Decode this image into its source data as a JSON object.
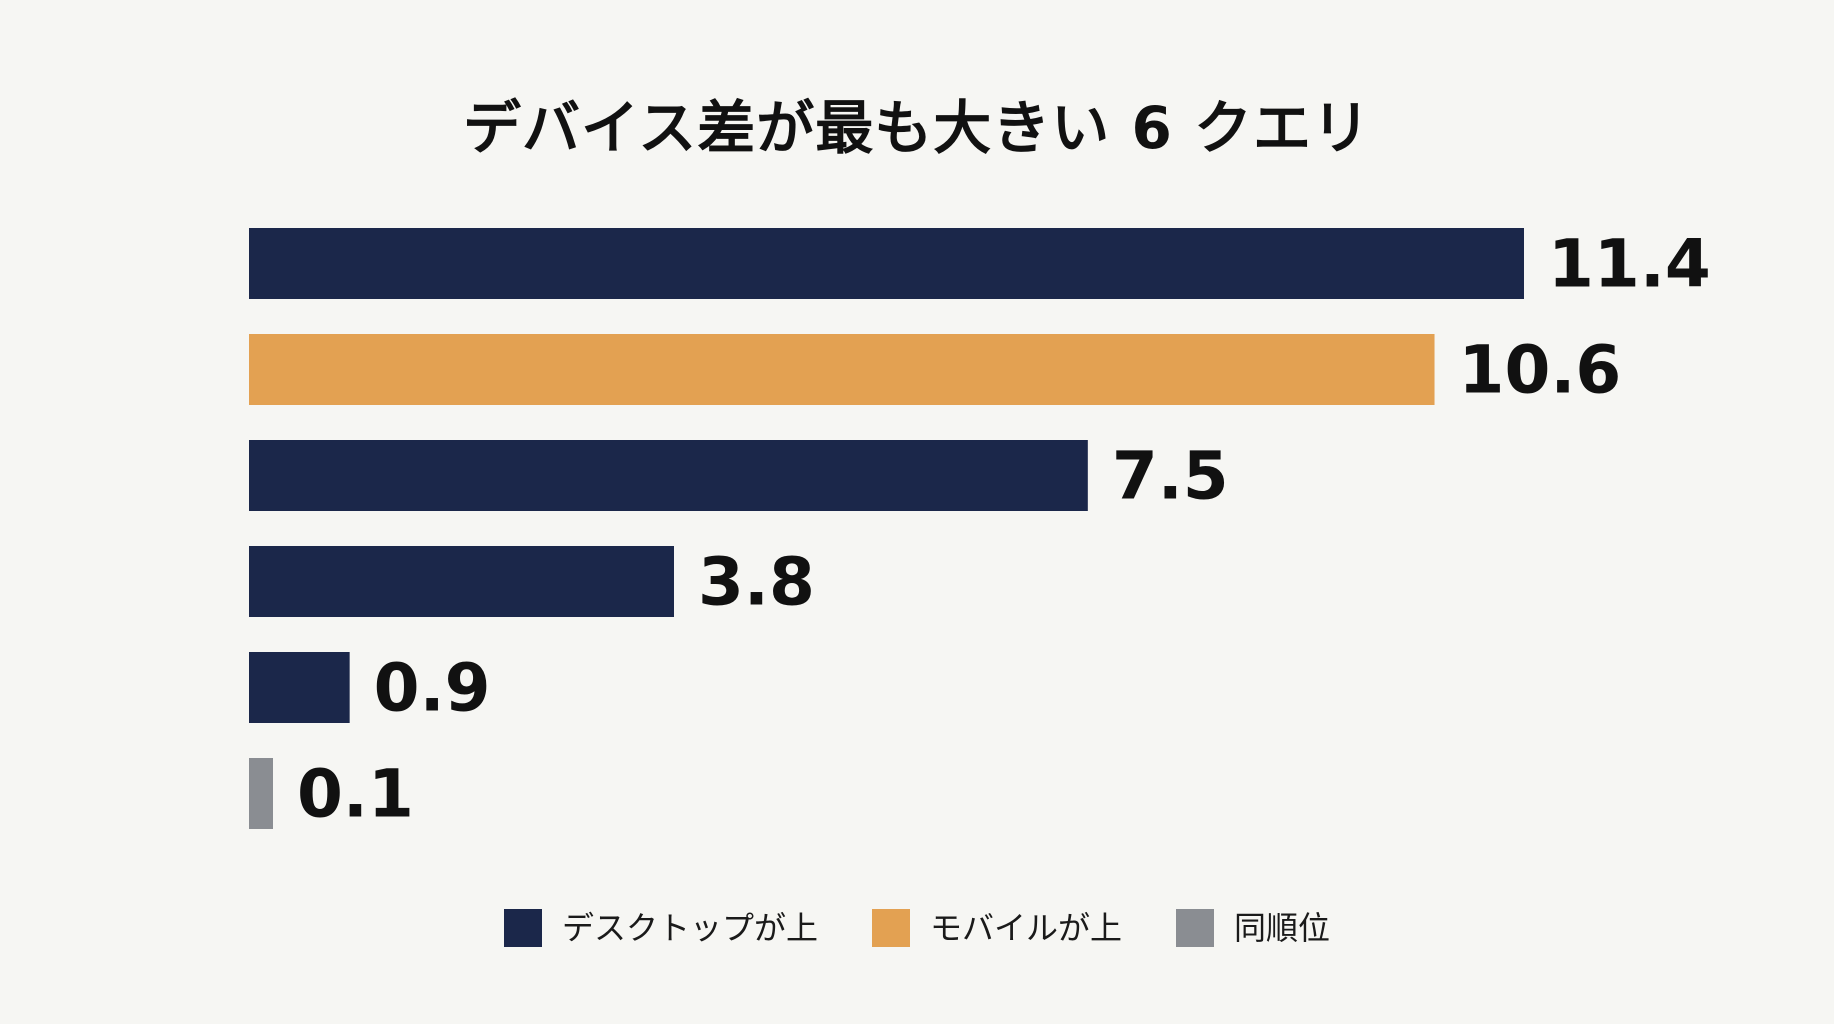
{
  "chart_data": {
    "type": "bar",
    "orientation": "horizontal",
    "title": "デバイス差が最も大きい 6 クエリ",
    "values": [
      11.4,
      10.6,
      7.5,
      3.8,
      0.9,
      0.1
    ],
    "value_labels": [
      "11.4",
      "10.6",
      "7.5",
      "3.8",
      "0.9",
      "0.1"
    ],
    "groups": [
      "desktop",
      "mobile",
      "desktop",
      "desktop",
      "desktop",
      "same"
    ],
    "xlim": [
      0,
      11.4
    ],
    "grid": false,
    "legend_position": "bottom-center",
    "legend": [
      {
        "key": "desktop",
        "label": "デスクトップが上",
        "color": "#1b274a"
      },
      {
        "key": "mobile",
        "label": "モバイルが上",
        "color": "#e3a152"
      },
      {
        "key": "same",
        "label": "同順位",
        "color": "#8a8d92"
      }
    ]
  }
}
